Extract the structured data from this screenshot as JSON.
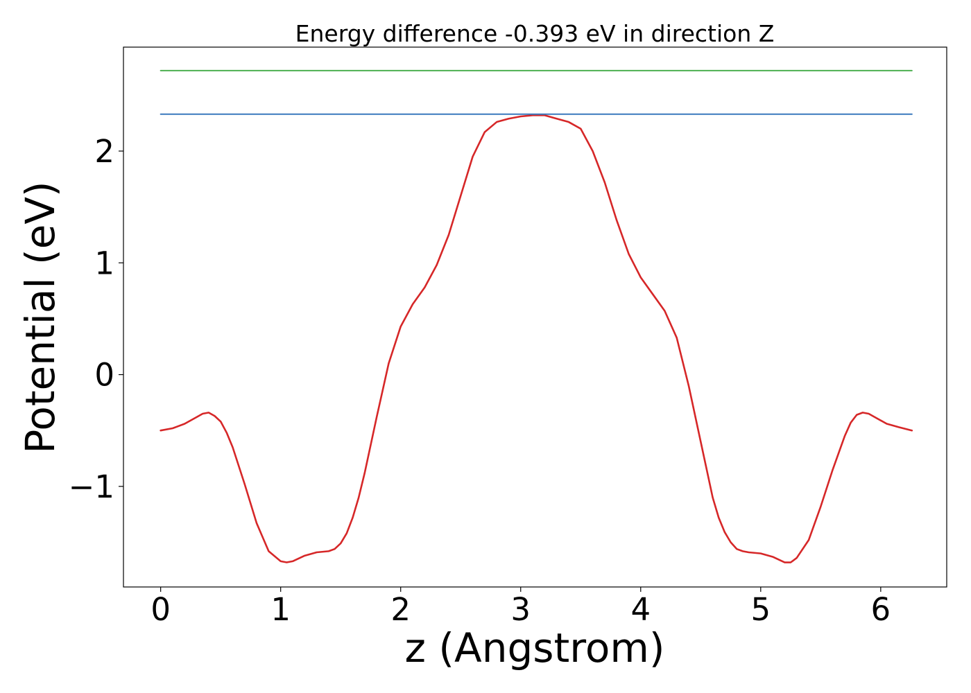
{
  "chart_data": {
    "type": "line",
    "title": "Energy difference -0.393 eV in direction Z",
    "xlabel": "z (Angstrom)",
    "ylabel": "Potential (eV)",
    "xlim": [
      -0.31,
      6.55
    ],
    "ylim": [
      -1.9,
      2.93
    ],
    "xticks": [
      0,
      1,
      2,
      3,
      4,
      5,
      6
    ],
    "xtick_labels": [
      "0",
      "1",
      "2",
      "3",
      "4",
      "5",
      "6"
    ],
    "yticks": [
      -1,
      0,
      1,
      2
    ],
    "ytick_labels": [
      "−1",
      "0",
      "1",
      "2"
    ],
    "grid": false,
    "series": [
      {
        "color": "#d62728",
        "x": [
          0.0,
          0.1,
          0.2,
          0.3,
          0.35,
          0.4,
          0.45,
          0.5,
          0.55,
          0.6,
          0.7,
          0.8,
          0.9,
          1.0,
          1.05,
          1.1,
          1.2,
          1.3,
          1.4,
          1.45,
          1.5,
          1.55,
          1.6,
          1.65,
          1.7,
          1.8,
          1.9,
          2.0,
          2.1,
          2.2,
          2.3,
          2.4,
          2.5,
          2.6,
          2.7,
          2.8,
          2.9,
          3.0,
          3.1,
          3.15,
          3.2,
          3.3,
          3.4,
          3.5,
          3.6,
          3.7,
          3.8,
          3.9,
          4.0,
          4.1,
          4.2,
          4.3,
          4.4,
          4.5,
          4.6,
          4.65,
          4.7,
          4.75,
          4.8,
          4.85,
          4.9,
          5.0,
          5.1,
          5.2,
          5.25,
          5.3,
          5.4,
          5.5,
          5.6,
          5.7,
          5.75,
          5.8,
          5.85,
          5.9,
          5.95,
          6.05,
          6.15,
          6.26
        ],
        "y": [
          -0.5,
          -0.48,
          -0.44,
          -0.38,
          -0.35,
          -0.34,
          -0.37,
          -0.42,
          -0.52,
          -0.65,
          -0.98,
          -1.33,
          -1.58,
          -1.67,
          -1.68,
          -1.67,
          -1.62,
          -1.59,
          -1.58,
          -1.56,
          -1.51,
          -1.42,
          -1.28,
          -1.1,
          -0.88,
          -0.38,
          0.1,
          0.43,
          0.63,
          0.78,
          0.98,
          1.25,
          1.6,
          1.95,
          2.17,
          2.26,
          2.29,
          2.31,
          2.32,
          2.32,
          2.32,
          2.29,
          2.26,
          2.2,
          2.0,
          1.72,
          1.38,
          1.08,
          0.87,
          0.72,
          0.57,
          0.33,
          -0.1,
          -0.6,
          -1.1,
          -1.28,
          -1.41,
          -1.5,
          -1.56,
          -1.58,
          -1.59,
          -1.6,
          -1.63,
          -1.68,
          -1.68,
          -1.64,
          -1.48,
          -1.18,
          -0.85,
          -0.55,
          -0.43,
          -0.36,
          -0.34,
          -0.35,
          -0.38,
          -0.44,
          -0.47,
          -0.5
        ]
      },
      {
        "color": "#3a78bd",
        "x": [
          0.0,
          6.26
        ],
        "y": [
          2.33,
          2.33
        ]
      },
      {
        "color": "#4caf50",
        "x": [
          0.0,
          6.26
        ],
        "y": [
          2.72,
          2.72
        ]
      }
    ]
  }
}
